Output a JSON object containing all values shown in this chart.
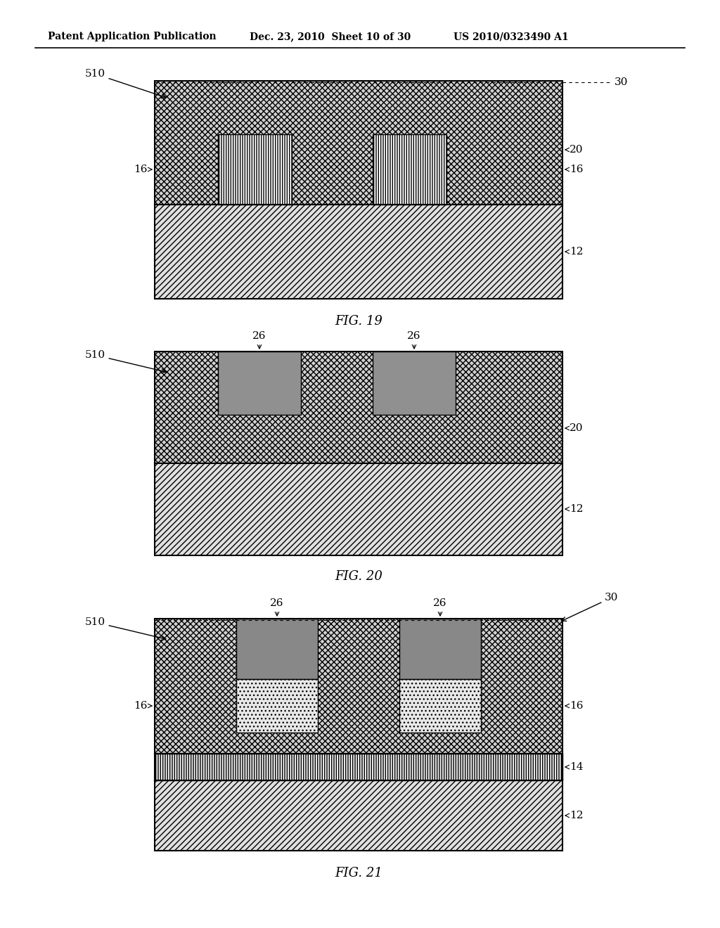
{
  "header_left": "Patent Application Publication",
  "header_mid": "Dec. 23, 2010  Sheet 10 of 30",
  "header_right": "US 2010/0323490 A1",
  "fig19_label": "FIG. 19",
  "fig20_label": "FIG. 20",
  "fig21_label": "FIG. 21",
  "bg_color": "#ffffff"
}
